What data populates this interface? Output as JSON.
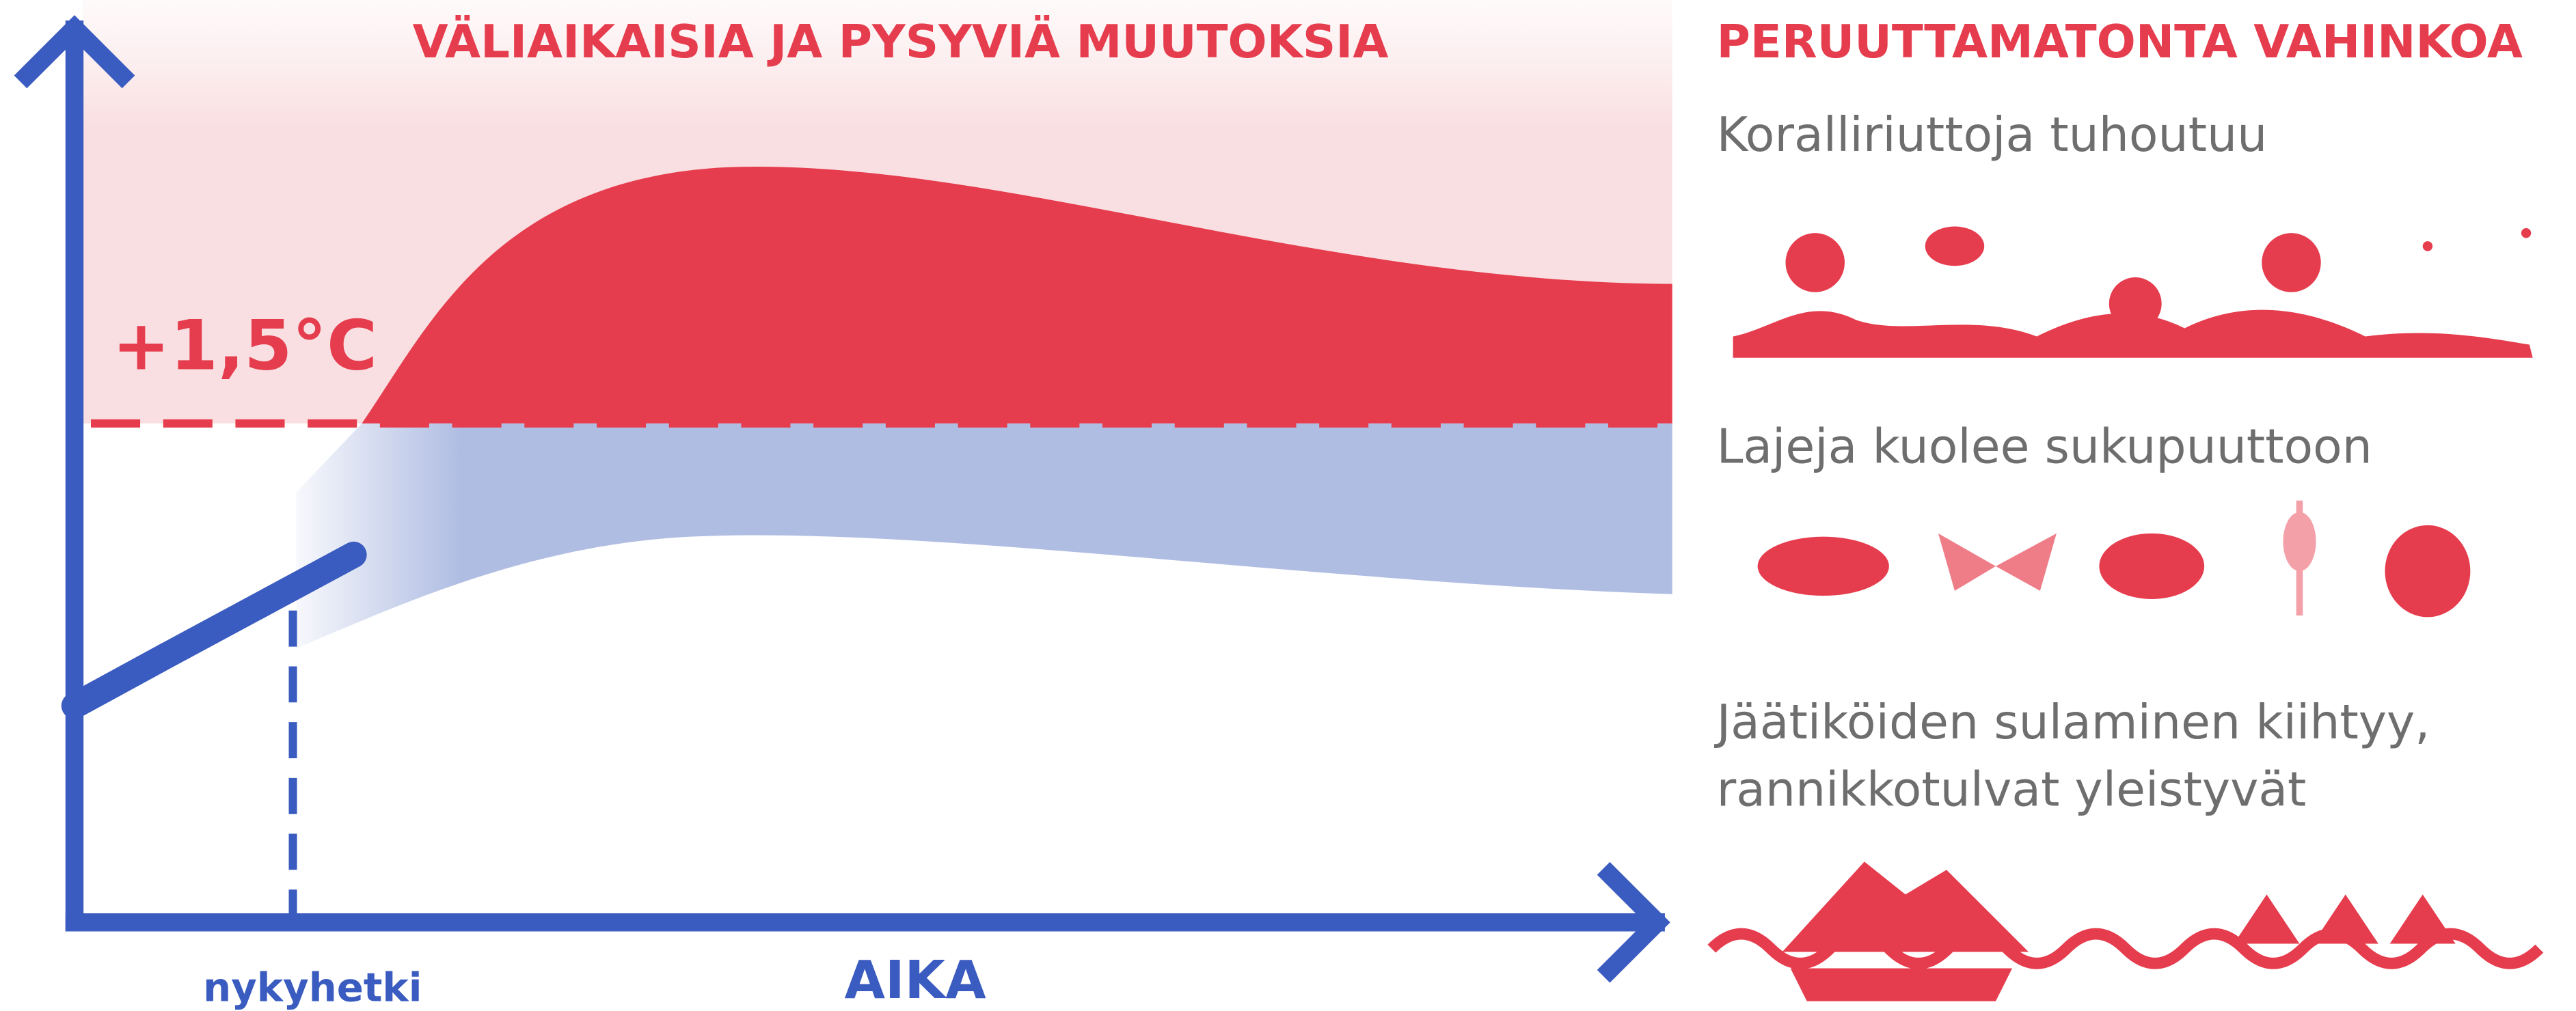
{
  "chart": {
    "title": "VÄLIAIKAISIA JA PYSYVIÄ MUUTOKSIA",
    "threshold_label": "+1,5°C",
    "now_label": "nykyhetki",
    "x_axis_label": "AIKA"
  },
  "panel": {
    "title": "PERUUTTAMATONTA VAHINKOA",
    "items": [
      {
        "lines": [
          "Koralliriuttoja tuhoutuu"
        ]
      },
      {
        "lines": [
          "Lajeja kuolee sukupuuttoon"
        ]
      },
      {
        "lines": [
          "Jäätiköiden sulaminen kiihtyy,",
          "rannikkotulvat yleistyvät"
        ]
      }
    ]
  }
}
